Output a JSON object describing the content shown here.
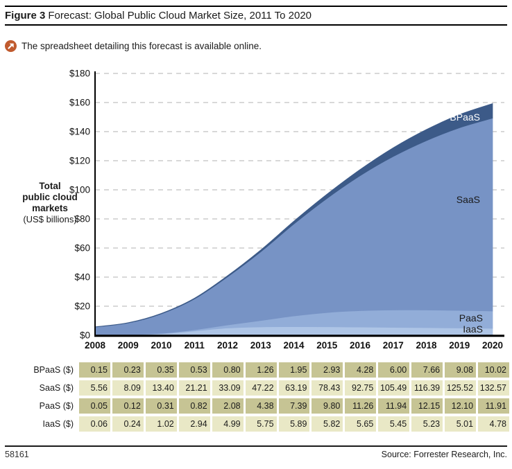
{
  "figure": {
    "label": "Figure 3",
    "title": "Forecast: Global Public Cloud Market Size, 2011 To 2020"
  },
  "note": {
    "text": "The spreadsheet detailing this forecast is available online.",
    "icon": "online-link-icon",
    "icon_color": "#c05a2e"
  },
  "chart_data": {
    "type": "area",
    "stacked": true,
    "title": "Forecast: Global Public Cloud Market Size, 2011 To 2020",
    "x": [
      2008,
      2009,
      2010,
      2011,
      2012,
      2013,
      2014,
      2015,
      2016,
      2017,
      2018,
      2019,
      2020
    ],
    "series": [
      {
        "name": "IaaS",
        "color": "#aec5e6",
        "values": [
          0.06,
          0.24,
          1.02,
          2.94,
          4.99,
          5.75,
          5.89,
          5.82,
          5.65,
          5.45,
          5.23,
          5.01,
          4.78
        ]
      },
      {
        "name": "PaaS",
        "color": "#92add8",
        "values": [
          0.05,
          0.12,
          0.31,
          0.82,
          2.08,
          4.38,
          7.39,
          9.8,
          11.26,
          11.94,
          12.15,
          12.1,
          11.91
        ]
      },
      {
        "name": "SaaS",
        "color": "#7793c5",
        "values": [
          5.56,
          8.09,
          13.4,
          21.21,
          33.09,
          47.22,
          63.19,
          78.43,
          92.75,
          105.49,
          116.39,
          125.52,
          132.57
        ]
      },
      {
        "name": "BPaaS",
        "color": "#3c5a88",
        "values": [
          0.15,
          0.23,
          0.35,
          0.53,
          0.8,
          1.26,
          1.95,
          2.93,
          4.28,
          6.0,
          7.66,
          9.08,
          10.02
        ]
      }
    ],
    "ylim": [
      0,
      180
    ],
    "y_tick_labels": [
      "$0",
      "$20",
      "$40",
      "$60",
      "$80",
      "$100",
      "$120",
      "$140",
      "$160",
      "$180"
    ],
    "grid": "dashed-horizontal",
    "gridline_color": "#cbcbcb",
    "axis_color": "#000000",
    "legend_position": "inside-right",
    "y_axis_title": {
      "lines": [
        "Total",
        "public cloud",
        "markets"
      ],
      "units": "(US$ billions)"
    }
  },
  "table": {
    "row_colors": {
      "odd": "#c6c494",
      "even": "#e9e8c6"
    },
    "rows": [
      {
        "label": "BPaaS ($)",
        "values": [
          "0.15",
          "0.23",
          "0.35",
          "0.53",
          "0.80",
          "1.26",
          "1.95",
          "2.93",
          "4.28",
          "6.00",
          "7.66",
          "9.08",
          "10.02"
        ]
      },
      {
        "label": "SaaS ($)",
        "values": [
          "5.56",
          "8.09",
          "13.40",
          "21.21",
          "33.09",
          "47.22",
          "63.19",
          "78.43",
          "92.75",
          "105.49",
          "116.39",
          "125.52",
          "132.57"
        ]
      },
      {
        "label": "PaaS ($)",
        "values": [
          "0.05",
          "0.12",
          "0.31",
          "0.82",
          "2.08",
          "4.38",
          "7.39",
          "9.80",
          "11.26",
          "11.94",
          "12.15",
          "12.10",
          "11.91"
        ]
      },
      {
        "label": "IaaS ($)",
        "values": [
          "0.06",
          "0.24",
          "1.02",
          "2.94",
          "4.99",
          "5.75",
          "5.89",
          "5.82",
          "5.65",
          "5.45",
          "5.23",
          "5.01",
          "4.78"
        ]
      }
    ]
  },
  "footer": {
    "doc_number": "58161",
    "source": "Source: Forrester Research, Inc."
  }
}
